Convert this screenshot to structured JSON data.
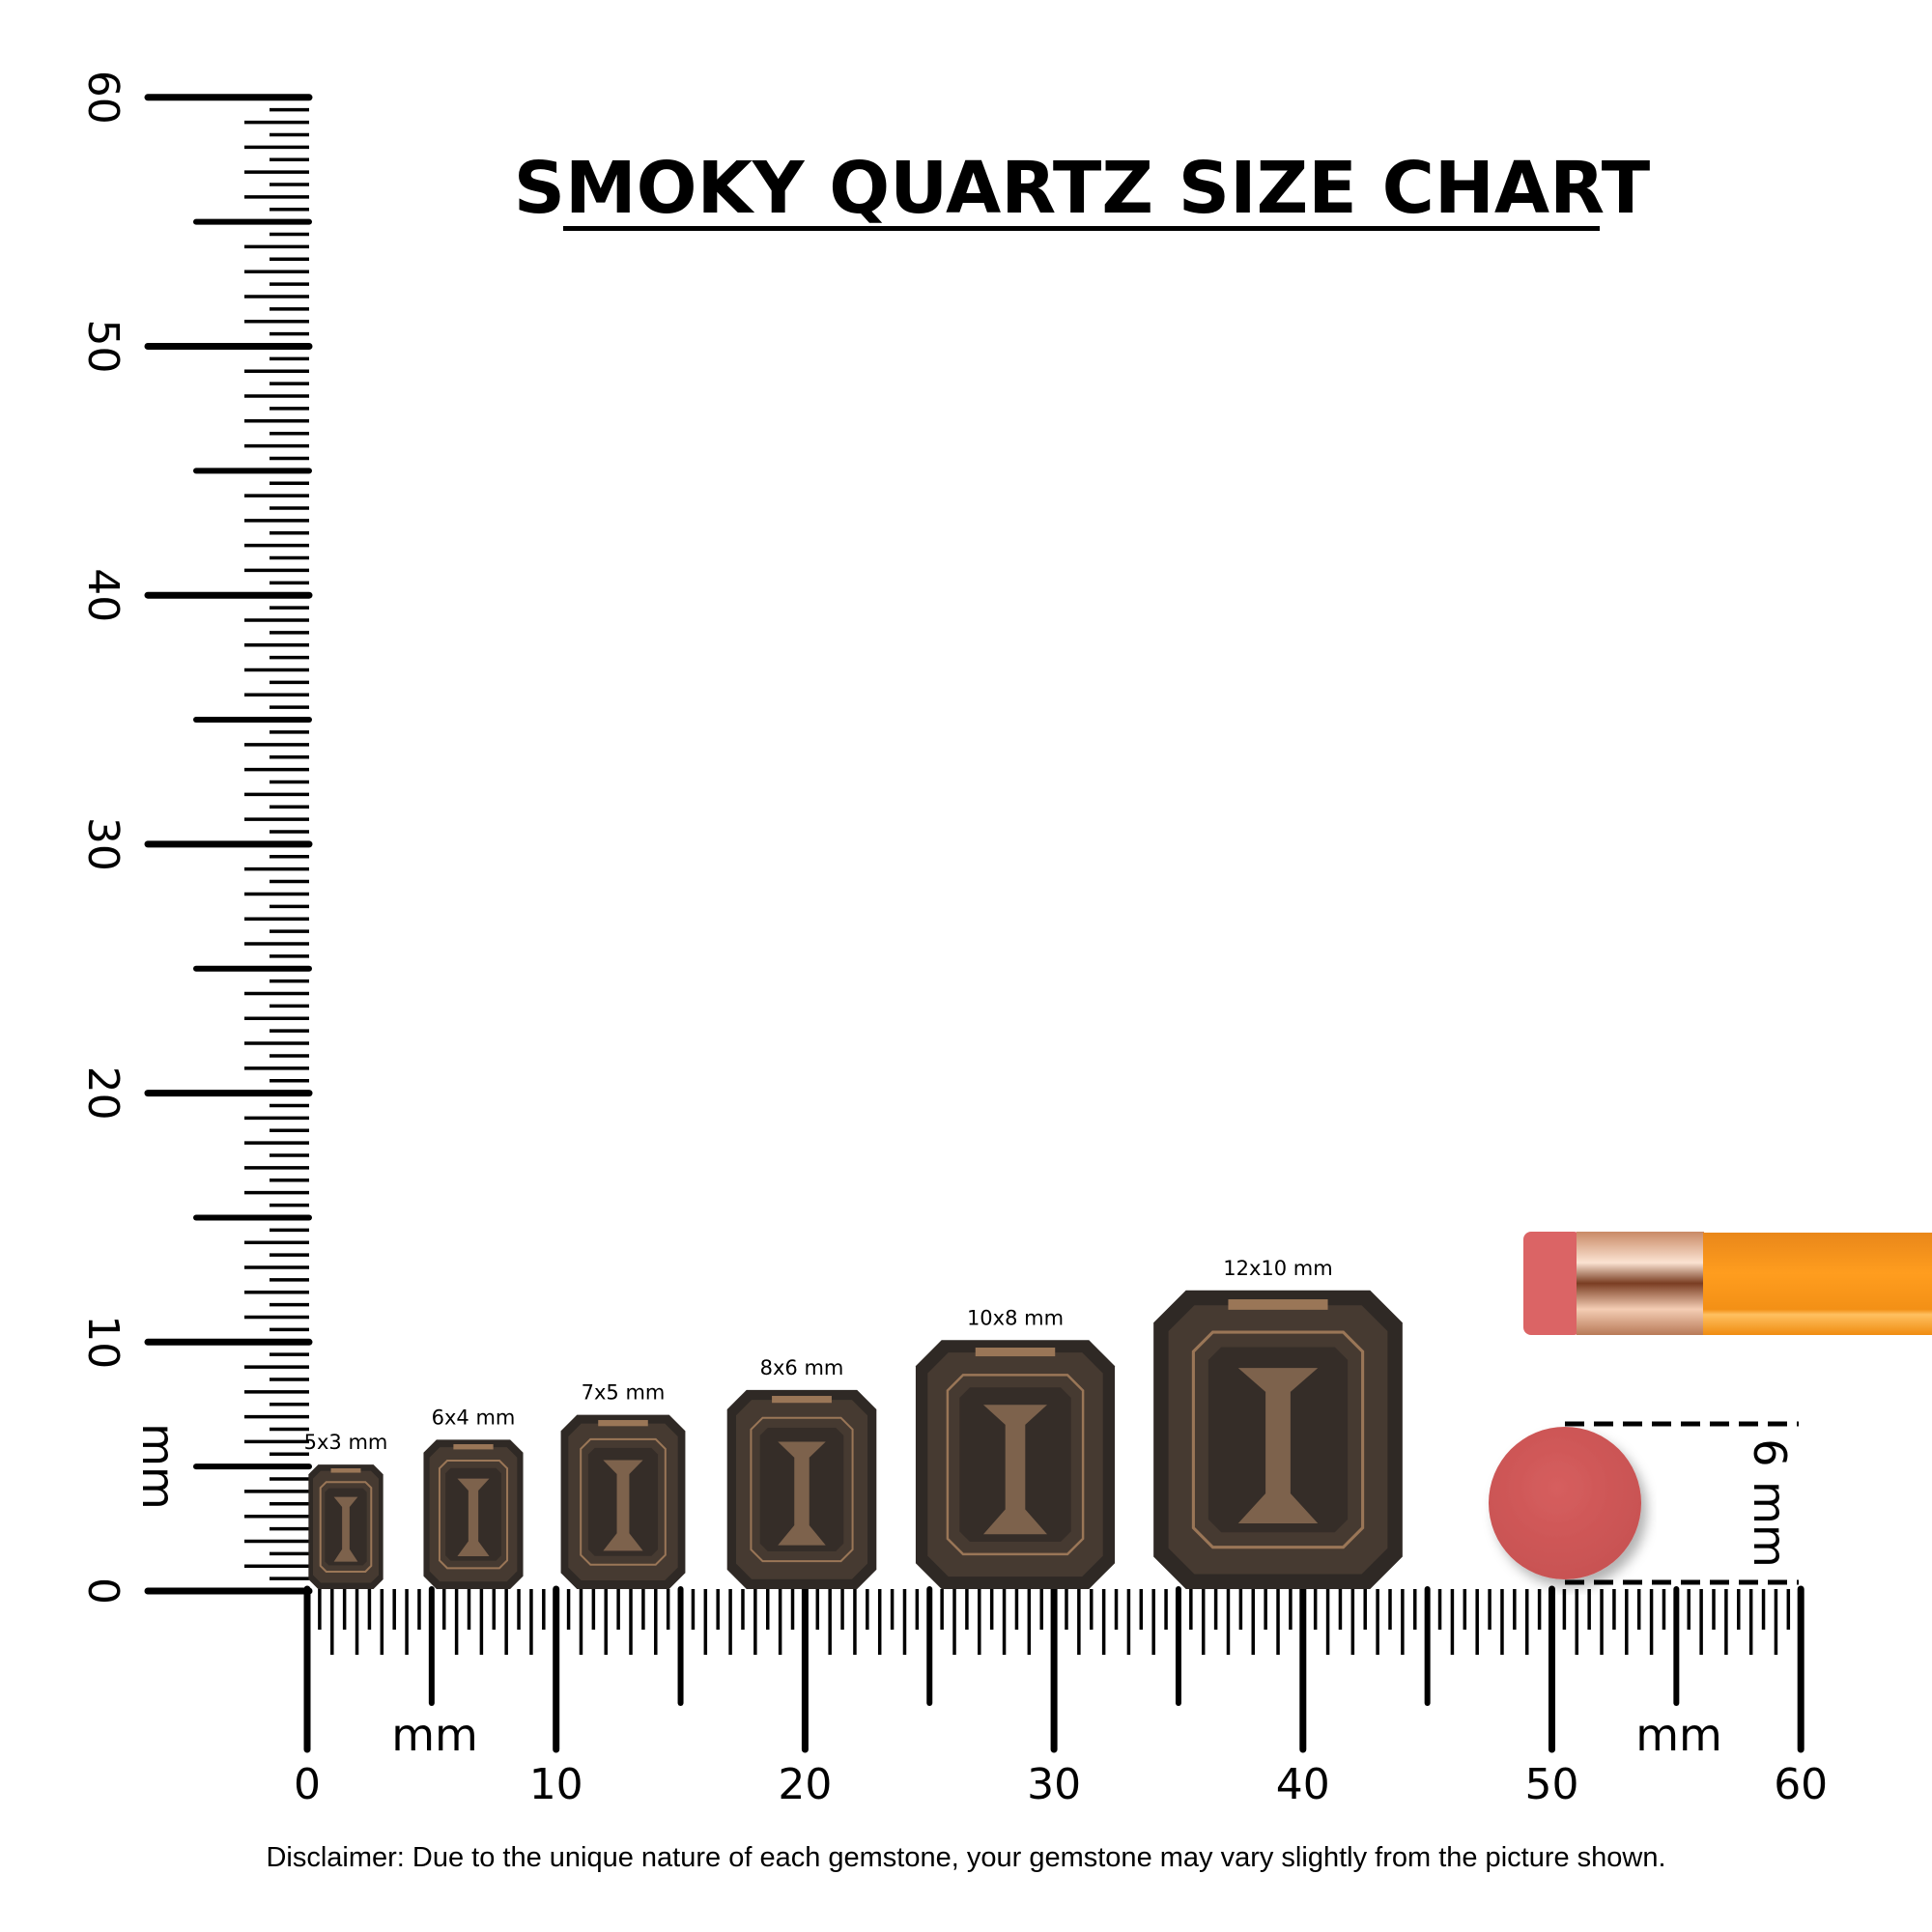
{
  "title": "SMOKY QUARTZ SIZE CHART",
  "unit_label": "mm",
  "disclaimer": "Disclaimer: Due to the unique nature of each gemstone, your gemstone may vary slightly from the picture shown.",
  "ruler": {
    "range_mm": [
      0,
      60
    ],
    "major_step_mm": 10,
    "mid_step_mm": 5,
    "minor_step_mm": 0.5,
    "labels": [
      "0",
      "10",
      "20",
      "30",
      "40",
      "50",
      "60"
    ]
  },
  "gems": [
    {
      "label": "5x3 mm",
      "length_mm": 5,
      "width_mm": 3
    },
    {
      "label": "6x4 mm",
      "length_mm": 6,
      "width_mm": 4
    },
    {
      "label": "7x5 mm",
      "length_mm": 7,
      "width_mm": 5
    },
    {
      "label": "8x6 mm",
      "length_mm": 8,
      "width_mm": 6
    },
    {
      "label": "10x8 mm",
      "length_mm": 10,
      "width_mm": 8
    },
    {
      "label": "12x10 mm",
      "length_mm": 12,
      "width_mm": 10
    }
  ],
  "reference": {
    "eraser_dot_label": "6 mm",
    "eraser_dot_diameter_mm": 6
  },
  "colors": {
    "ink": "#000000",
    "gem_dark": "#2f2925",
    "gem_mid": "#463a31",
    "gem_light": "#9a7657",
    "eraser": "#d25a5a",
    "ferrule": "#d9a98a",
    "pencil": "#f7941d"
  }
}
